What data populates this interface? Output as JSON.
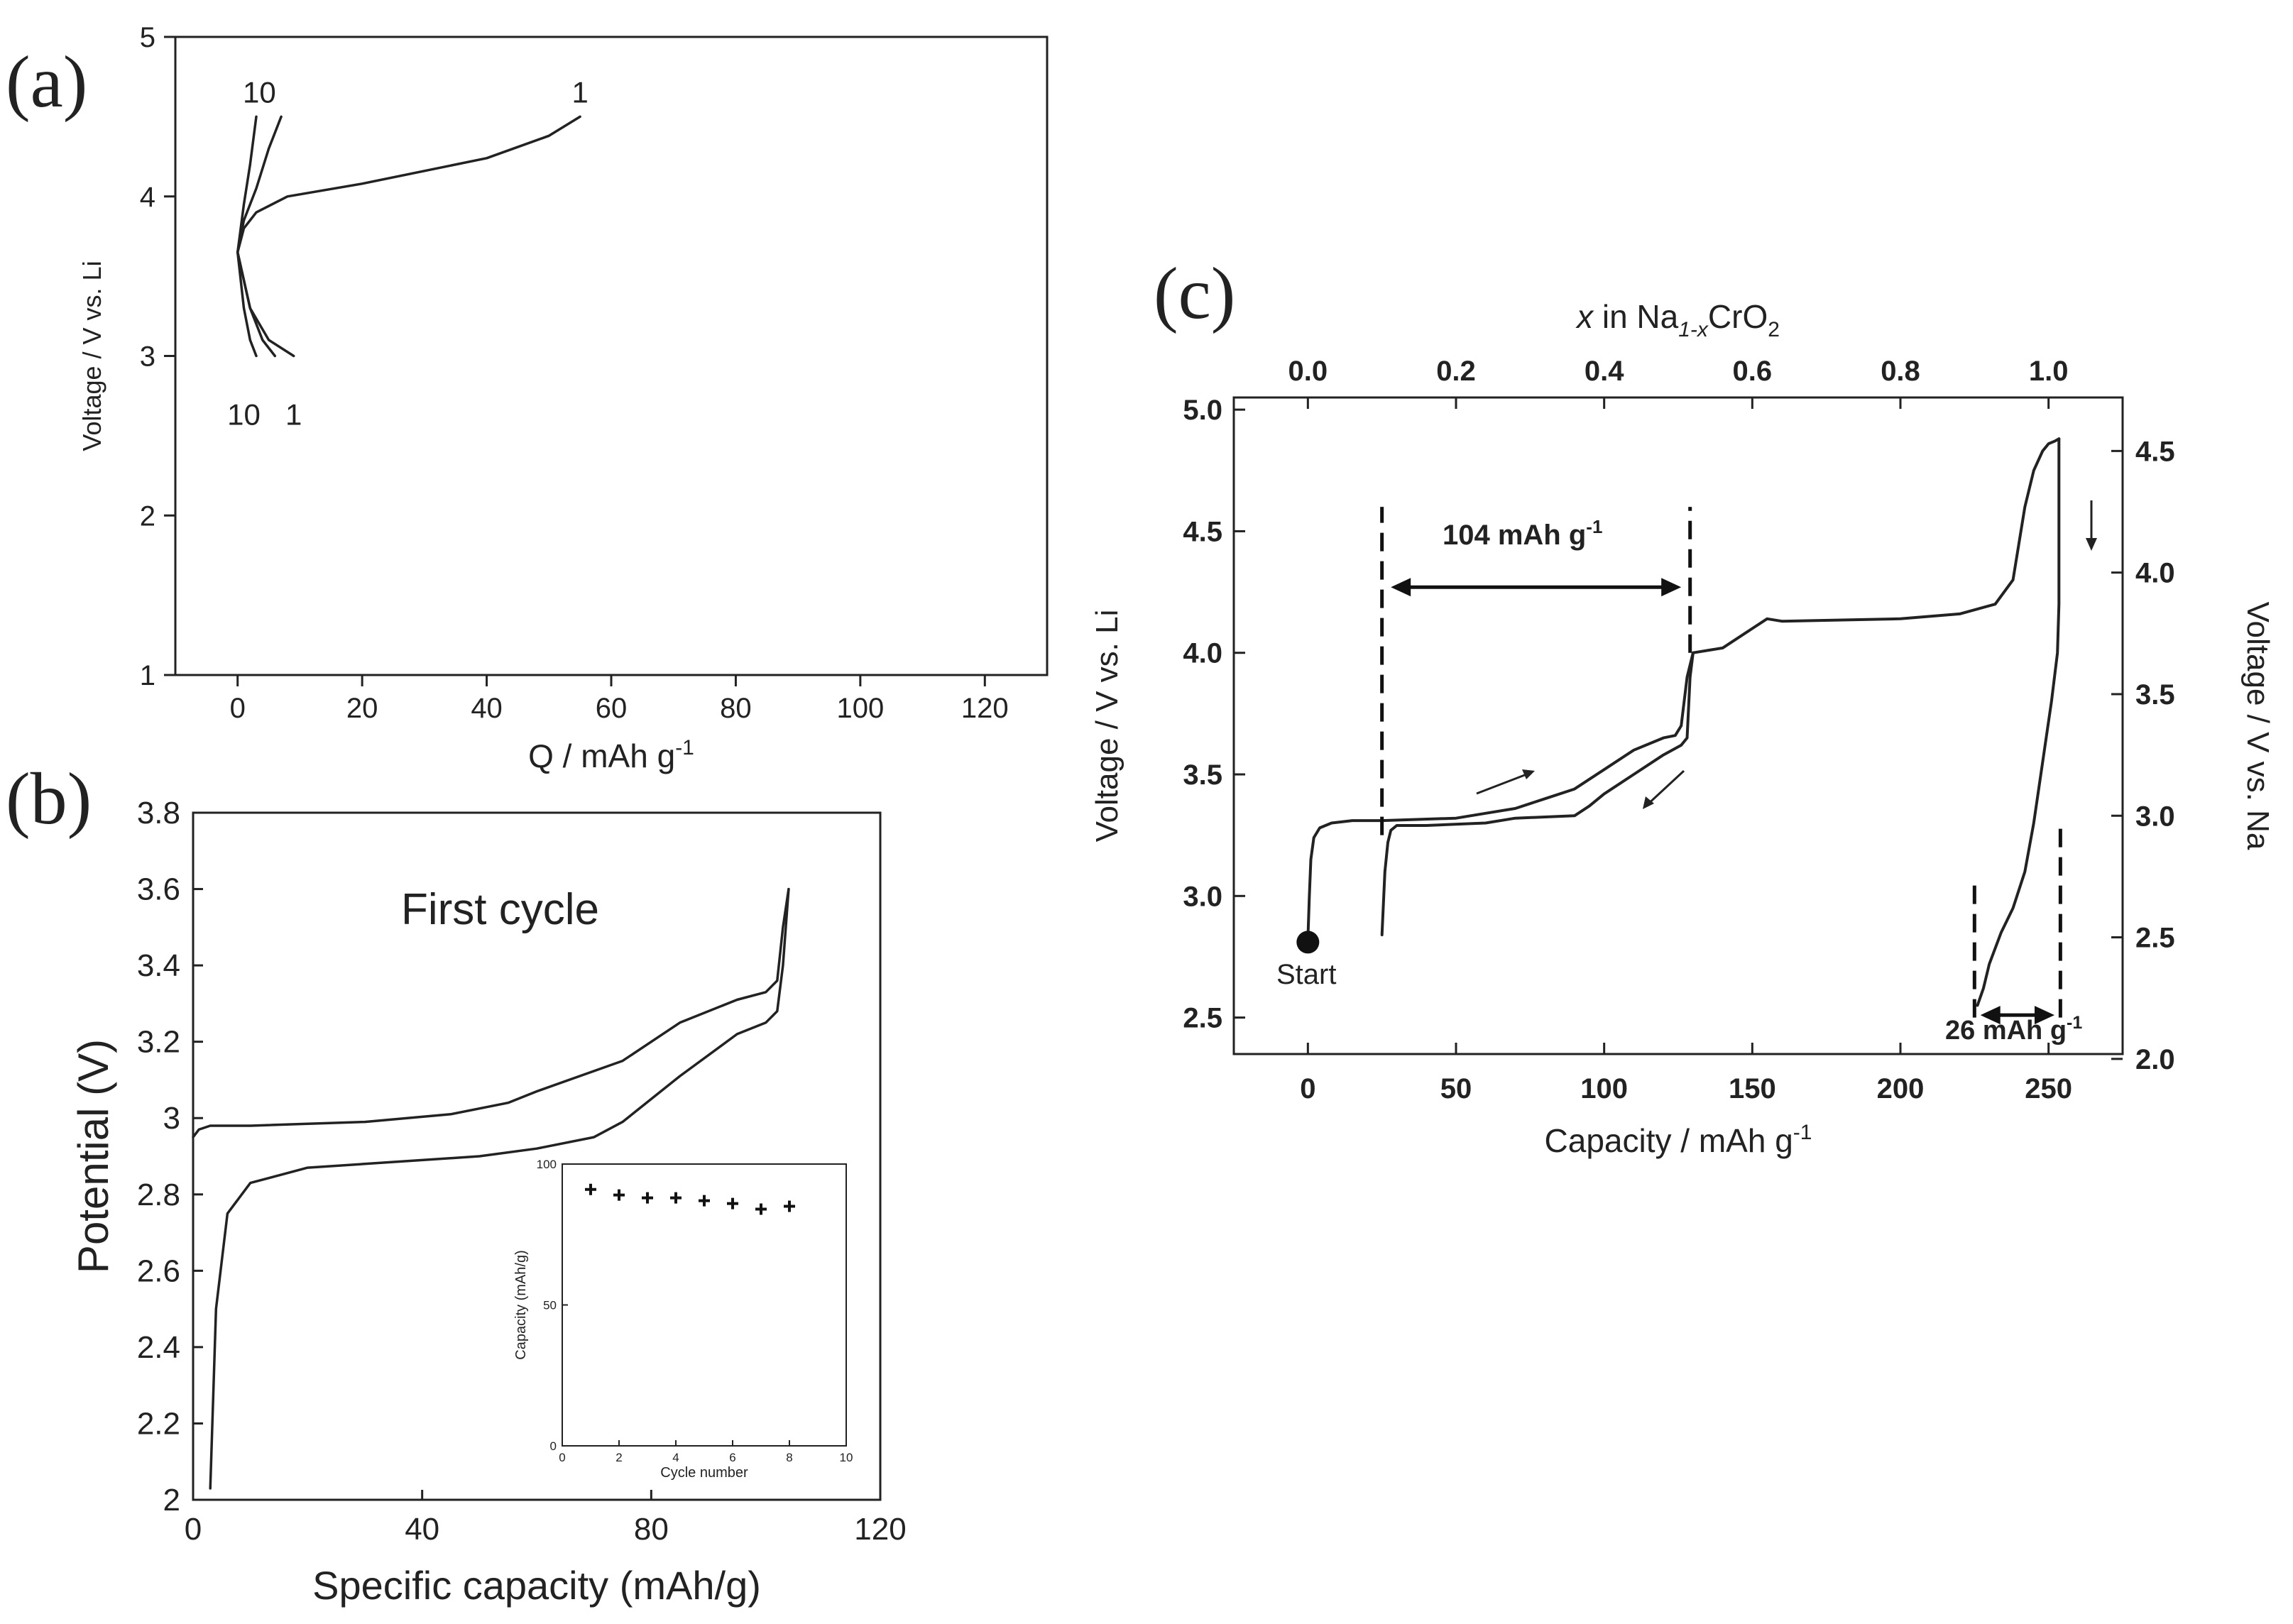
{
  "panels": {
    "a": {
      "label": "(a)"
    },
    "b": {
      "label": "(b)",
      "annotation": "First cycle"
    },
    "c": {
      "label": "(c)",
      "annotation_start": "Start",
      "annotation_104": "104 mAh g",
      "annotation_26": "26 mAh g",
      "sup": "-1"
    }
  },
  "chart_data": [
    {
      "id": "a",
      "type": "line",
      "xlabel": "Q / mAh g",
      "xlabel_sup": "-1",
      "ylabel": "Voltage / V vs. Li",
      "xlim": [
        -10,
        130
      ],
      "ylim": [
        1,
        5
      ],
      "xticks": [
        0,
        20,
        40,
        60,
        80,
        100,
        120
      ],
      "yticks": [
        1,
        2,
        3,
        4,
        5
      ],
      "series": [
        {
          "name": "charge cycle 1",
          "x": [
            0,
            1,
            3,
            8,
            20,
            40,
            50,
            55
          ],
          "y": [
            3.65,
            3.8,
            3.9,
            4.0,
            4.08,
            4.24,
            4.38,
            4.5
          ]
        },
        {
          "name": "charge cycle 2",
          "x": [
            0,
            1,
            3,
            5,
            7
          ],
          "y": [
            3.65,
            3.85,
            4.05,
            4.3,
            4.5
          ]
        },
        {
          "name": "charge cycle 10",
          "x": [
            0,
            1,
            2,
            3
          ],
          "y": [
            3.65,
            3.95,
            4.2,
            4.5
          ]
        },
        {
          "name": "discharge cycle 1",
          "x": [
            0,
            2,
            5,
            9
          ],
          "y": [
            3.65,
            3.3,
            3.1,
            3.0
          ]
        },
        {
          "name": "discharge cycle 2",
          "x": [
            0,
            2,
            4,
            6
          ],
          "y": [
            3.65,
            3.3,
            3.1,
            3.0
          ]
        },
        {
          "name": "discharge cycle 10",
          "x": [
            0,
            1,
            2,
            3
          ],
          "y": [
            3.65,
            3.3,
            3.1,
            3.0
          ]
        }
      ],
      "labels": [
        {
          "text": "10",
          "x": 3.5,
          "y": 4.65
        },
        {
          "text": "1",
          "x": 55,
          "y": 4.65
        },
        {
          "text": "10",
          "x": 1,
          "y": 2.63
        },
        {
          "text": "1",
          "x": 9,
          "y": 2.63
        }
      ]
    },
    {
      "id": "b",
      "type": "line",
      "title": "First cycle",
      "xlabel": "Specific capacity (mAh/g)",
      "ylabel": "Potential (V)",
      "xlim": [
        0,
        120
      ],
      "ylim": [
        2,
        3.8
      ],
      "xticks": [
        0,
        40,
        80,
        120
      ],
      "yticks": [
        2,
        2.2,
        2.4,
        2.6,
        2.8,
        3,
        3.2,
        3.4,
        3.6,
        3.8
      ],
      "ytick_labels": [
        "2",
        "2.2",
        "2.4",
        "2.6",
        "2.8",
        "3",
        "3.2",
        "3.4",
        "3.6",
        "3.8"
      ],
      "series": [
        {
          "name": "charge",
          "x": [
            0,
            1,
            3,
            10,
            30,
            45,
            55,
            60,
            75,
            85,
            95,
            100,
            102,
            103,
            104
          ],
          "y": [
            2.95,
            2.97,
            2.98,
            2.98,
            2.99,
            3.01,
            3.04,
            3.07,
            3.15,
            3.25,
            3.31,
            3.33,
            3.36,
            3.5,
            3.6
          ]
        },
        {
          "name": "discharge",
          "x": [
            104,
            103,
            102,
            100,
            95,
            85,
            75,
            70,
            60,
            50,
            40,
            20,
            10,
            6,
            4,
            3
          ],
          "y": [
            3.6,
            3.4,
            3.28,
            3.25,
            3.22,
            3.11,
            2.99,
            2.95,
            2.92,
            2.9,
            2.89,
            2.87,
            2.83,
            2.75,
            2.5,
            2.03
          ]
        }
      ],
      "inset": {
        "xlabel": "Cycle number",
        "ylabel": "Capacity (mAh/g)",
        "xlim": [
          0,
          10
        ],
        "ylim": [
          0,
          100
        ],
        "xticks": [
          0,
          2,
          4,
          6,
          8,
          10
        ],
        "yticks": [
          0,
          50,
          100
        ],
        "x": [
          1,
          2,
          3,
          4,
          5,
          6,
          7,
          8
        ],
        "y": [
          91,
          89,
          88,
          88,
          87,
          86,
          84,
          85
        ]
      }
    },
    {
      "id": "c",
      "type": "line",
      "xlabel": "Capacity / mAh g",
      "xlabel_sup": "-1",
      "ylabel": "Voltage / V vs. Li",
      "ylabel_right": "Voltage / V vs. Na",
      "top_label": {
        "pre": "x",
        "mid": " in Na",
        "sub": "1-x",
        "post": "CrO",
        "sub2": "2"
      },
      "xlim": [
        -25,
        275
      ],
      "ylim": [
        2.35,
        5.05
      ],
      "xticks": [
        0,
        50,
        100,
        150,
        200,
        250
      ],
      "yticks": [
        2.5,
        3.0,
        3.5,
        4.0,
        4.5,
        5.0
      ],
      "ytick_labels": [
        "2.5",
        "3.0",
        "3.5",
        "4.0",
        "4.5",
        "5.0"
      ],
      "right_ticks": [
        "2.0",
        "2.5",
        "3.0",
        "3.5",
        "4.0",
        "4.5"
      ],
      "top_ticks": [
        "0.0",
        "0.2",
        "0.4",
        "0.6",
        "0.8",
        "1.0"
      ],
      "series": [
        {
          "name": "first charge",
          "x": [
            0,
            0.5,
            1,
            2,
            4,
            8,
            15,
            25,
            50,
            60,
            70,
            80,
            90,
            100,
            110,
            120,
            124,
            126,
            128,
            130,
            140,
            150,
            155,
            160,
            200,
            220,
            232,
            238,
            242,
            245,
            248,
            250,
            252,
            253.5
          ],
          "y": [
            2.82,
            3.0,
            3.15,
            3.24,
            3.28,
            3.3,
            3.31,
            3.31,
            3.32,
            3.34,
            3.36,
            3.4,
            3.44,
            3.52,
            3.6,
            3.65,
            3.66,
            3.7,
            3.9,
            4.0,
            4.02,
            4.1,
            4.14,
            4.13,
            4.14,
            4.16,
            4.2,
            4.3,
            4.6,
            4.75,
            4.83,
            4.86,
            4.87,
            4.88
          ]
        },
        {
          "name": "first discharge",
          "x": [
            253.5,
            253.5,
            253,
            251,
            248,
            245,
            242,
            238,
            234,
            230,
            228,
            226
          ],
          "y": [
            4.88,
            4.2,
            4.0,
            3.8,
            3.55,
            3.3,
            3.1,
            2.95,
            2.85,
            2.72,
            2.62,
            2.55
          ]
        },
        {
          "name": "second charge",
          "x": [
            25,
            26,
            27,
            28,
            30,
            40,
            60,
            70,
            90,
            95,
            100,
            110,
            120,
            126,
            128,
            129,
            130
          ],
          "y": [
            2.84,
            3.1,
            3.22,
            3.27,
            3.29,
            3.29,
            3.3,
            3.32,
            3.33,
            3.37,
            3.42,
            3.5,
            3.58,
            3.62,
            3.65,
            3.9,
            4.0
          ]
        }
      ],
      "dashed_lines": [
        {
          "x": 25,
          "y_from": 3.25,
          "y_to": 4.6
        },
        {
          "x": 129,
          "y_from": 4.0,
          "y_to": 4.6
        },
        {
          "x": 225,
          "y_from": 2.5,
          "y_to": 3.05
        },
        {
          "x": 254,
          "y_from": 2.5,
          "y_to": 3.3
        }
      ],
      "arrows": [
        {
          "label": "104 mAh g-1",
          "x1": 28,
          "x2": 126,
          "y": 4.27
        },
        {
          "label": "26 mAh g-1",
          "x1": 227,
          "x2": 252,
          "y": 2.51
        }
      ],
      "markers": [
        {
          "label": "Start",
          "x": 0,
          "y": 2.81
        }
      ]
    }
  ]
}
